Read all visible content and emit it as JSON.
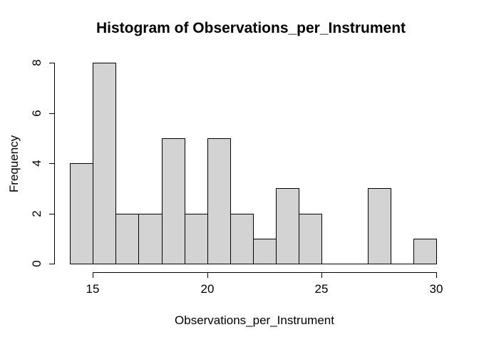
{
  "chart_data": {
    "type": "bar",
    "subtype": "histogram",
    "title": "Histogram of Observations_per_Instrument",
    "xlabel": "Observations_per_Instrument",
    "ylabel": "Frequency",
    "xlim": [
      14,
      30
    ],
    "ylim": [
      0,
      8
    ],
    "bin_width": 1,
    "bin_edges": [
      14,
      15,
      16,
      17,
      18,
      19,
      20,
      21,
      22,
      23,
      24,
      25,
      26,
      27,
      28,
      29,
      30
    ],
    "counts": [
      4,
      8,
      2,
      2,
      5,
      2,
      5,
      2,
      1,
      3,
      2,
      0,
      0,
      3,
      0,
      1
    ],
    "x_ticks": [
      15,
      20,
      25,
      30
    ],
    "y_ticks": [
      0,
      2,
      4,
      6,
      8
    ],
    "grid": false,
    "legend": false,
    "colors": {
      "bar_fill": "#d3d3d3",
      "bar_border": "#000000",
      "text": "#000000",
      "background": "#ffffff"
    }
  }
}
